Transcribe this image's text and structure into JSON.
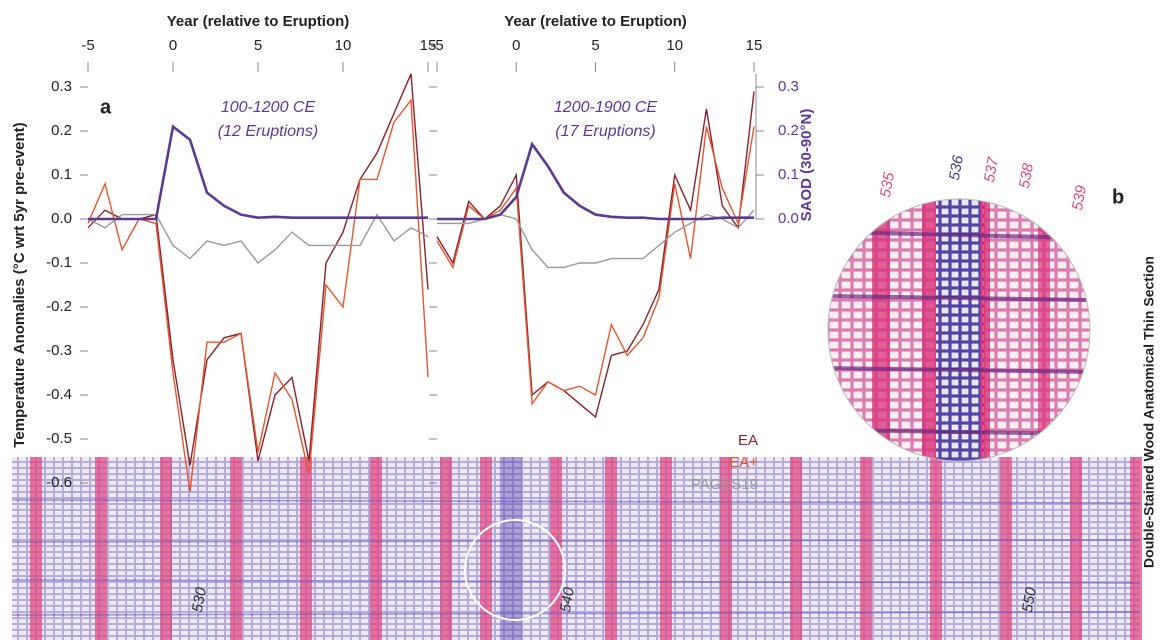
{
  "chart_data": [
    {
      "type": "line",
      "xlabel": "Year (relative to Eruption)",
      "ylabel": "Temperature Anomalies (°C wrt 5yr pre-event)",
      "panel_label": "a",
      "annotations": [
        "100-1200 CE",
        "(12 Eruptions)"
      ],
      "annotation_color": "#5b3a96",
      "x": [
        -5,
        -4,
        -3,
        -2,
        -1,
        0,
        1,
        2,
        3,
        4,
        5,
        6,
        7,
        8,
        9,
        10,
        11,
        12,
        13,
        14,
        15
      ],
      "xlim": [
        -5,
        15
      ],
      "xticks": [
        -5,
        0,
        5,
        10,
        15
      ],
      "ylim": [
        -0.63,
        0.33
      ],
      "yticks": [
        0.3,
        0.2,
        0.1,
        {
          "value": 0,
          "label": "0.0"
        },
        -0.1,
        -0.2,
        -0.3,
        -0.4,
        -0.5,
        -0.6
      ],
      "series": [
        {
          "color": "#8b1f2a",
          "values": [
            -0.02,
            0.02,
            0.0,
            0.0,
            0.01,
            -0.32,
            -0.56,
            -0.32,
            -0.27,
            -0.26,
            -0.55,
            -0.4,
            -0.36,
            -0.55,
            -0.1,
            -0.03,
            0.09,
            0.15,
            0.24,
            0.33,
            -0.16
          ]
        },
        {
          "color": "#e8552a",
          "values": [
            -0.01,
            0.08,
            -0.07,
            0.0,
            -0.01,
            -0.35,
            -0.62,
            -0.28,
            -0.28,
            -0.26,
            -0.53,
            -0.35,
            -0.41,
            -0.58,
            -0.15,
            -0.2,
            0.09,
            0.09,
            0.22,
            0.27,
            -0.36
          ]
        },
        {
          "color": "#999999",
          "values": [
            0.0,
            -0.02,
            0.01,
            0.01,
            0.01,
            -0.06,
            -0.09,
            -0.05,
            -0.06,
            -0.05,
            -0.1,
            -0.07,
            -0.03,
            -0.06,
            -0.06,
            -0.06,
            -0.06,
            0.01,
            -0.05,
            -0.02,
            -0.04
          ]
        },
        {
          "color": "#5b3a96",
          "axis": "y2",
          "values": [
            0.0,
            0.0,
            0.0,
            0.0,
            0.0,
            0.21,
            0.18,
            0.06,
            0.03,
            0.01,
            0.003,
            0.005,
            0.003,
            0.003,
            0.003,
            0.003,
            0.003,
            0.003,
            0.003,
            0.003,
            0.003
          ]
        }
      ]
    },
    {
      "type": "line",
      "xlabel": "Year (relative to Eruption)",
      "annotations": [
        "1200-1900 CE",
        "(17 Eruptions)"
      ],
      "annotation_color": "#5b3a96",
      "x": [
        -5,
        -4,
        -3,
        -2,
        -1,
        0,
        1,
        2,
        3,
        4,
        5,
        6,
        7,
        8,
        9,
        10,
        11,
        12,
        13,
        14,
        15
      ],
      "xlim": [
        -5,
        15
      ],
      "xticks": [
        -5,
        0,
        5,
        10,
        15
      ],
      "y2label": "SAOD (30-90°N)",
      "y2color": "#5b3a96",
      "y2lim": [
        -0.63,
        0.33
      ],
      "y2ticks": [
        {
          "value": 0,
          "label": "0.0"
        },
        0.1,
        0.2,
        0.3
      ],
      "legend": "lower right",
      "series": [
        {
          "name": "EA",
          "color": "#8b1f2a",
          "values": [
            -0.04,
            -0.1,
            0.04,
            0.0,
            0.03,
            0.1,
            -0.4,
            -0.37,
            -0.39,
            -0.42,
            -0.45,
            -0.31,
            -0.3,
            -0.24,
            -0.16,
            0.1,
            0.02,
            0.25,
            0.03,
            -0.02,
            0.29
          ]
        },
        {
          "name": "EA+",
          "color": "#e8552a",
          "values": [
            -0.05,
            -0.11,
            0.03,
            0.0,
            0.02,
            0.07,
            -0.42,
            -0.37,
            -0.39,
            -0.38,
            -0.4,
            -0.24,
            -0.31,
            -0.27,
            -0.18,
            0.08,
            -0.09,
            0.21,
            0.07,
            -0.01,
            0.21
          ]
        },
        {
          "name": "PAGES19",
          "color": "#999999",
          "values": [
            -0.01,
            -0.01,
            -0.01,
            0.0,
            0.01,
            0.0,
            -0.07,
            -0.11,
            -0.11,
            -0.1,
            -0.1,
            -0.09,
            -0.09,
            -0.09,
            -0.06,
            -0.03,
            -0.01,
            0.01,
            0.0,
            -0.02,
            0.02
          ]
        },
        {
          "color": "#5b3a96",
          "axis": "y2",
          "values": [
            0.0,
            0.0,
            0.0,
            0.0,
            0.01,
            0.05,
            0.17,
            0.12,
            0.06,
            0.03,
            0.01,
            0.005,
            0.003,
            0.003,
            0.0,
            0.0,
            0.0,
            0.0,
            0.003,
            0.003,
            0.003
          ]
        }
      ]
    }
  ],
  "thin_section": {
    "label": "b",
    "title": "Double-Stained Wood Anatomical Thin Section",
    "ring_labels": [
      {
        "text": "535",
        "color": "#e0457f"
      },
      {
        "text": "536",
        "color": "#4a3a80"
      },
      {
        "text": "537",
        "color": "#e0457f"
      },
      {
        "text": "538",
        "color": "#e0457f"
      },
      {
        "text": "539",
        "color": "#e0457f"
      }
    ]
  },
  "long_section": {
    "ring_labels": [
      "530",
      "540",
      "550"
    ]
  }
}
